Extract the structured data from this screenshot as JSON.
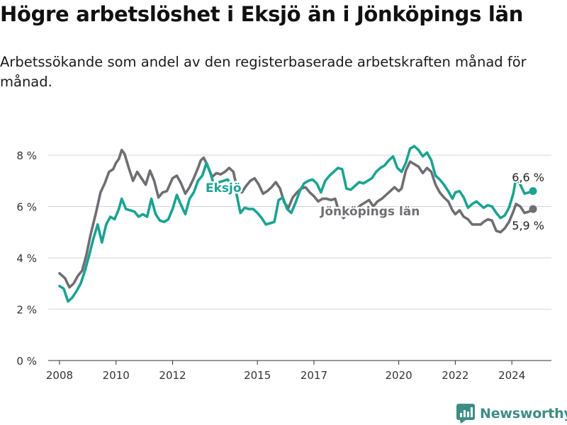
{
  "header": {
    "title": "Högre arbetslöshet i Eksjö än i Jönköpings län",
    "subtitle": "Arbetssökande som andel av den registerbaserade arbetskraften månad för månad."
  },
  "brand": {
    "name": "Newsworthy",
    "icon": "newsworthy-logo-icon",
    "color": "#3d8d84"
  },
  "chart_data": {
    "type": "line",
    "x_unit": "year",
    "xlim": [
      2007.6,
      2025.4
    ],
    "ylim": [
      0,
      8.8
    ],
    "y_ticks": [
      {
        "value": 0,
        "label": "0 %"
      },
      {
        "value": 2,
        "label": "2 %"
      },
      {
        "value": 4,
        "label": "4 %"
      },
      {
        "value": 6,
        "label": "6 %"
      },
      {
        "value": 8,
        "label": "8 %"
      }
    ],
    "x_ticks": [
      {
        "value": 2008,
        "label": "2008"
      },
      {
        "value": 2010,
        "label": "2010"
      },
      {
        "value": 2012,
        "label": "2012"
      },
      {
        "value": 2015,
        "label": "2015"
      },
      {
        "value": 2017,
        "label": "2017"
      },
      {
        "value": 2020,
        "label": "2020"
      },
      {
        "value": 2022,
        "label": "2022"
      },
      {
        "value": 2024,
        "label": "2024"
      }
    ],
    "grid": true,
    "legend": "inline labels",
    "series": [
      {
        "name": "Jönköpings län",
        "color": "#6e6e73",
        "end_label": "5,9 %",
        "points": [
          [
            2008.0,
            3.4
          ],
          [
            2008.2,
            3.2
          ],
          [
            2008.35,
            2.85
          ],
          [
            2008.5,
            3.0
          ],
          [
            2008.65,
            3.3
          ],
          [
            2008.8,
            3.5
          ],
          [
            2008.95,
            4.1
          ],
          [
            2009.1,
            4.9
          ],
          [
            2009.3,
            5.8
          ],
          [
            2009.45,
            6.55
          ],
          [
            2009.6,
            6.9
          ],
          [
            2009.75,
            7.35
          ],
          [
            2009.9,
            7.45
          ],
          [
            2010.0,
            7.7
          ],
          [
            2010.1,
            7.85
          ],
          [
            2010.2,
            8.2
          ],
          [
            2010.3,
            8.05
          ],
          [
            2010.45,
            7.5
          ],
          [
            2010.6,
            7.0
          ],
          [
            2010.75,
            7.35
          ],
          [
            2010.9,
            7.1
          ],
          [
            2011.05,
            6.85
          ],
          [
            2011.2,
            7.4
          ],
          [
            2011.35,
            7.0
          ],
          [
            2011.5,
            6.35
          ],
          [
            2011.65,
            6.55
          ],
          [
            2011.8,
            6.6
          ],
          [
            2012.0,
            7.1
          ],
          [
            2012.15,
            7.2
          ],
          [
            2012.3,
            6.9
          ],
          [
            2012.45,
            6.5
          ],
          [
            2012.6,
            6.75
          ],
          [
            2012.75,
            7.1
          ],
          [
            2012.9,
            7.5
          ],
          [
            2013.0,
            7.8
          ],
          [
            2013.1,
            7.9
          ],
          [
            2013.25,
            7.55
          ],
          [
            2013.4,
            7.15
          ],
          [
            2013.55,
            7.3
          ],
          [
            2013.7,
            7.25
          ],
          [
            2013.85,
            7.35
          ],
          [
            2014.0,
            7.5
          ],
          [
            2014.15,
            7.35
          ],
          [
            2014.3,
            6.6
          ],
          [
            2014.45,
            6.55
          ],
          [
            2014.6,
            6.8
          ],
          [
            2014.75,
            7.0
          ],
          [
            2014.9,
            7.1
          ],
          [
            2015.05,
            6.85
          ],
          [
            2015.2,
            6.5
          ],
          [
            2015.35,
            6.6
          ],
          [
            2015.5,
            6.75
          ],
          [
            2015.65,
            6.95
          ],
          [
            2015.8,
            6.7
          ],
          [
            2015.95,
            6.15
          ],
          [
            2016.1,
            5.95
          ],
          [
            2016.25,
            6.35
          ],
          [
            2016.4,
            6.55
          ],
          [
            2016.55,
            6.7
          ],
          [
            2016.7,
            6.75
          ],
          [
            2016.85,
            6.55
          ],
          [
            2017.0,
            6.4
          ],
          [
            2017.15,
            6.2
          ],
          [
            2017.3,
            6.3
          ],
          [
            2017.45,
            6.3
          ],
          [
            2017.6,
            6.25
          ],
          [
            2017.75,
            6.3
          ],
          [
            2017.9,
            5.75
          ],
          [
            2018.05,
            5.55
          ],
          [
            2018.2,
            5.8
          ],
          [
            2018.35,
            5.9
          ],
          [
            2018.5,
            5.9
          ],
          [
            2018.65,
            6.05
          ],
          [
            2018.8,
            6.15
          ],
          [
            2018.95,
            6.25
          ],
          [
            2019.1,
            6.0
          ],
          [
            2019.25,
            6.2
          ],
          [
            2019.4,
            6.3
          ],
          [
            2019.55,
            6.45
          ],
          [
            2019.7,
            6.6
          ],
          [
            2019.85,
            6.75
          ],
          [
            2020.0,
            6.6
          ],
          [
            2020.1,
            6.7
          ],
          [
            2020.25,
            7.4
          ],
          [
            2020.4,
            7.75
          ],
          [
            2020.55,
            7.65
          ],
          [
            2020.7,
            7.55
          ],
          [
            2020.85,
            7.3
          ],
          [
            2021.0,
            7.5
          ],
          [
            2021.15,
            7.35
          ],
          [
            2021.3,
            6.85
          ],
          [
            2021.45,
            6.55
          ],
          [
            2021.6,
            6.35
          ],
          [
            2021.75,
            6.2
          ],
          [
            2021.9,
            5.85
          ],
          [
            2022.0,
            5.7
          ],
          [
            2022.15,
            5.85
          ],
          [
            2022.3,
            5.6
          ],
          [
            2022.45,
            5.5
          ],
          [
            2022.6,
            5.3
          ],
          [
            2022.75,
            5.3
          ],
          [
            2022.9,
            5.3
          ],
          [
            2023.0,
            5.4
          ],
          [
            2023.15,
            5.5
          ],
          [
            2023.3,
            5.45
          ],
          [
            2023.45,
            5.05
          ],
          [
            2023.6,
            5.0
          ],
          [
            2023.75,
            5.15
          ],
          [
            2023.9,
            5.4
          ],
          [
            2024.05,
            5.8
          ],
          [
            2024.15,
            6.1
          ],
          [
            2024.3,
            6.0
          ],
          [
            2024.45,
            5.75
          ],
          [
            2024.6,
            5.8
          ],
          [
            2024.75,
            5.9
          ]
        ]
      },
      {
        "name": "Eksjö",
        "color": "#1aa392",
        "end_label": "6,6 %",
        "points": [
          [
            2008.0,
            2.9
          ],
          [
            2008.15,
            2.8
          ],
          [
            2008.3,
            2.3
          ],
          [
            2008.45,
            2.45
          ],
          [
            2008.6,
            2.7
          ],
          [
            2008.75,
            3.0
          ],
          [
            2008.9,
            3.5
          ],
          [
            2009.05,
            4.1
          ],
          [
            2009.2,
            4.75
          ],
          [
            2009.35,
            5.3
          ],
          [
            2009.5,
            4.6
          ],
          [
            2009.65,
            5.3
          ],
          [
            2009.8,
            5.6
          ],
          [
            2009.95,
            5.5
          ],
          [
            2010.1,
            5.9
          ],
          [
            2010.2,
            6.3
          ],
          [
            2010.35,
            5.9
          ],
          [
            2010.5,
            5.85
          ],
          [
            2010.65,
            5.8
          ],
          [
            2010.8,
            5.6
          ],
          [
            2010.95,
            5.7
          ],
          [
            2011.1,
            5.6
          ],
          [
            2011.25,
            6.3
          ],
          [
            2011.4,
            5.7
          ],
          [
            2011.55,
            5.45
          ],
          [
            2011.7,
            5.4
          ],
          [
            2011.85,
            5.5
          ],
          [
            2012.0,
            5.9
          ],
          [
            2012.15,
            6.45
          ],
          [
            2012.3,
            6.05
          ],
          [
            2012.45,
            5.7
          ],
          [
            2012.6,
            6.3
          ],
          [
            2012.75,
            6.55
          ],
          [
            2012.9,
            7.0
          ],
          [
            2013.05,
            7.2
          ],
          [
            2013.2,
            7.7
          ],
          [
            2013.35,
            7.25
          ],
          [
            2013.5,
            6.7
          ],
          [
            2013.65,
            6.95
          ],
          [
            2013.8,
            7.0
          ],
          [
            2013.95,
            7.05
          ],
          [
            2014.1,
            6.8
          ],
          [
            2014.25,
            6.55
          ],
          [
            2014.4,
            5.75
          ],
          [
            2014.55,
            5.95
          ],
          [
            2014.7,
            5.9
          ],
          [
            2014.85,
            5.9
          ],
          [
            2015.0,
            5.75
          ],
          [
            2015.15,
            5.55
          ],
          [
            2015.3,
            5.3
          ],
          [
            2015.45,
            5.35
          ],
          [
            2015.6,
            5.4
          ],
          [
            2015.75,
            6.25
          ],
          [
            2015.9,
            6.35
          ],
          [
            2016.05,
            5.9
          ],
          [
            2016.2,
            5.75
          ],
          [
            2016.35,
            6.15
          ],
          [
            2016.5,
            6.6
          ],
          [
            2016.65,
            6.9
          ],
          [
            2016.8,
            7.0
          ],
          [
            2016.95,
            7.05
          ],
          [
            2017.1,
            6.9
          ],
          [
            2017.25,
            6.55
          ],
          [
            2017.4,
            7.0
          ],
          [
            2017.55,
            7.2
          ],
          [
            2017.7,
            7.35
          ],
          [
            2017.85,
            7.5
          ],
          [
            2018.0,
            7.45
          ],
          [
            2018.15,
            6.7
          ],
          [
            2018.3,
            6.65
          ],
          [
            2018.45,
            6.8
          ],
          [
            2018.6,
            6.95
          ],
          [
            2018.75,
            6.9
          ],
          [
            2018.9,
            7.0
          ],
          [
            2019.05,
            7.1
          ],
          [
            2019.2,
            7.35
          ],
          [
            2019.35,
            7.5
          ],
          [
            2019.5,
            7.6
          ],
          [
            2019.65,
            7.8
          ],
          [
            2019.8,
            7.95
          ],
          [
            2019.95,
            7.5
          ],
          [
            2020.1,
            7.35
          ],
          [
            2020.25,
            7.7
          ],
          [
            2020.4,
            8.25
          ],
          [
            2020.55,
            8.35
          ],
          [
            2020.7,
            8.2
          ],
          [
            2020.85,
            7.95
          ],
          [
            2021.0,
            8.1
          ],
          [
            2021.15,
            7.8
          ],
          [
            2021.3,
            7.2
          ],
          [
            2021.45,
            7.05
          ],
          [
            2021.6,
            6.85
          ],
          [
            2021.75,
            6.6
          ],
          [
            2021.9,
            6.3
          ],
          [
            2022.0,
            6.55
          ],
          [
            2022.15,
            6.6
          ],
          [
            2022.3,
            6.35
          ],
          [
            2022.45,
            5.95
          ],
          [
            2022.6,
            6.1
          ],
          [
            2022.75,
            6.2
          ],
          [
            2022.9,
            6.05
          ],
          [
            2023.0,
            5.95
          ],
          [
            2023.15,
            6.05
          ],
          [
            2023.3,
            6.0
          ],
          [
            2023.45,
            5.75
          ],
          [
            2023.6,
            5.55
          ],
          [
            2023.75,
            5.65
          ],
          [
            2023.9,
            5.95
          ],
          [
            2024.05,
            6.5
          ],
          [
            2024.15,
            7.1
          ],
          [
            2024.3,
            6.85
          ],
          [
            2024.45,
            6.5
          ],
          [
            2024.6,
            6.55
          ],
          [
            2024.75,
            6.6
          ]
        ]
      }
    ]
  }
}
